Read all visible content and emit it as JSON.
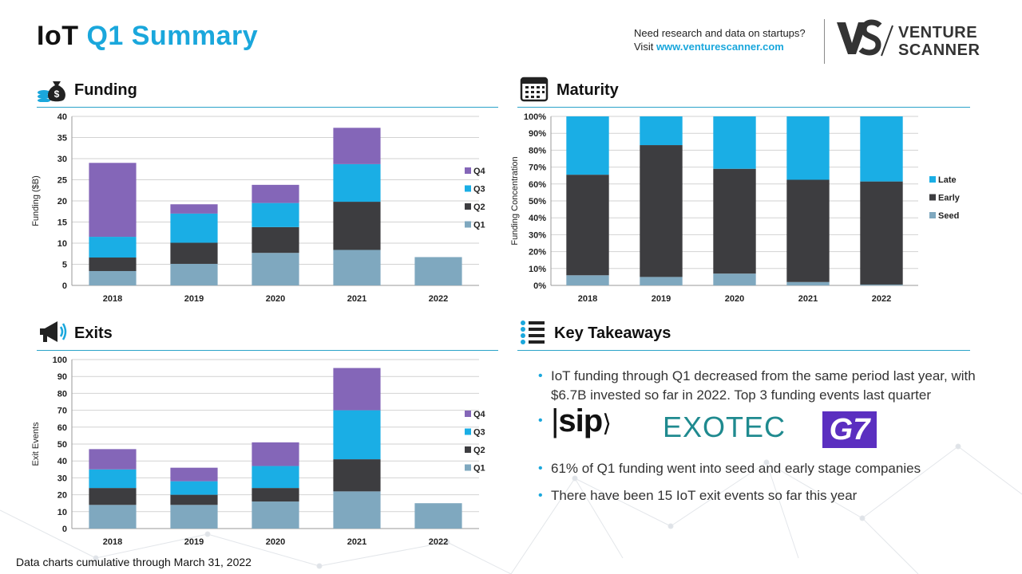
{
  "header": {
    "title_part1": "IoT",
    "title_part2": "Q1 Summary",
    "promo_line1": "Need research and data on startups?",
    "promo_line2_prefix": "Visit ",
    "promo_url": "www.venturescanner.com",
    "logo_line1": "VENTURE",
    "logo_line2": "SCANNER"
  },
  "sections": {
    "funding": "Funding",
    "maturity": "Maturity",
    "exits": "Exits",
    "takeaways": "Key Takeaways"
  },
  "colors": {
    "q1": "#7fa8bf",
    "q2": "#3d3d40",
    "q3": "#1aaee5",
    "q4": "#8466b8",
    "accent": "#1aa7dc",
    "grid": "#d2d2d2"
  },
  "chart_data": [
    {
      "id": "funding",
      "type": "bar",
      "stacked": true,
      "categories": [
        "2018",
        "2019",
        "2020",
        "2021",
        "2022"
      ],
      "series": [
        {
          "name": "Q1",
          "values": [
            3.4,
            5.1,
            7.7,
            8.4,
            6.7
          ]
        },
        {
          "name": "Q2",
          "values": [
            3.2,
            5.0,
            6.1,
            11.4,
            0
          ]
        },
        {
          "name": "Q3",
          "values": [
            4.9,
            6.9,
            5.7,
            8.9,
            0
          ]
        },
        {
          "name": "Q4",
          "values": [
            17.5,
            2.2,
            4.3,
            8.6,
            0
          ]
        }
      ],
      "ylabel": "Funding ($B)",
      "ylim": [
        0,
        40
      ],
      "yticks": [
        "0",
        "5",
        "10",
        "15",
        "20",
        "25",
        "30",
        "35",
        "40"
      ],
      "legend": [
        "Q4",
        "Q3",
        "Q2",
        "Q1"
      ],
      "legend_position": "right",
      "grid": true
    },
    {
      "id": "maturity",
      "type": "bar",
      "stacked": true,
      "percent": true,
      "categories": [
        "2018",
        "2019",
        "2020",
        "2021",
        "2022"
      ],
      "series": [
        {
          "name": "Seed",
          "values": [
            6,
            5,
            7,
            2,
            0.5
          ]
        },
        {
          "name": "Early",
          "values": [
            59.5,
            78,
            62,
            60.5,
            61
          ]
        },
        {
          "name": "Late",
          "values": [
            34.5,
            17,
            31,
            37.5,
            38.5
          ]
        }
      ],
      "ylabel": "Funding Concentration",
      "ylim": [
        0,
        100
      ],
      "yticks": [
        "0%",
        "10%",
        "20%",
        "30%",
        "40%",
        "50%",
        "60%",
        "70%",
        "80%",
        "90%",
        "100%"
      ],
      "legend": [
        "Late",
        "Early",
        "Seed"
      ],
      "legend_position": "right",
      "grid": true
    },
    {
      "id": "exits",
      "type": "bar",
      "stacked": true,
      "categories": [
        "2018",
        "2019",
        "2020",
        "2021",
        "2022"
      ],
      "series": [
        {
          "name": "Q1",
          "values": [
            14,
            14,
            16,
            22,
            15
          ]
        },
        {
          "name": "Q2",
          "values": [
            10,
            6,
            8,
            19,
            0
          ]
        },
        {
          "name": "Q3",
          "values": [
            11,
            8,
            13,
            29,
            0
          ]
        },
        {
          "name": "Q4",
          "values": [
            12,
            8,
            14,
            25,
            0
          ]
        }
      ],
      "ylabel": "Exit Events",
      "ylim": [
        0,
        100
      ],
      "yticks": [
        "0",
        "10",
        "20",
        "30",
        "40",
        "50",
        "60",
        "70",
        "80",
        "90",
        "100"
      ],
      "legend": [
        "Q4",
        "Q3",
        "Q2",
        "Q1"
      ],
      "legend_position": "right",
      "grid": true
    }
  ],
  "takeaways": {
    "item1": "IoT funding through Q1 decreased from the same period last year, with $6.7B invested so far in 2022. Top 3 funding events last quarter",
    "logo1": "sip",
    "logo2": "EXOTEC",
    "logo3": "G7",
    "item2": "61% of Q1 funding went into seed and early stage companies",
    "item3": "There have been 15 IoT exit events so far this year"
  },
  "footnote": "Data charts cumulative through March 31, 2022"
}
